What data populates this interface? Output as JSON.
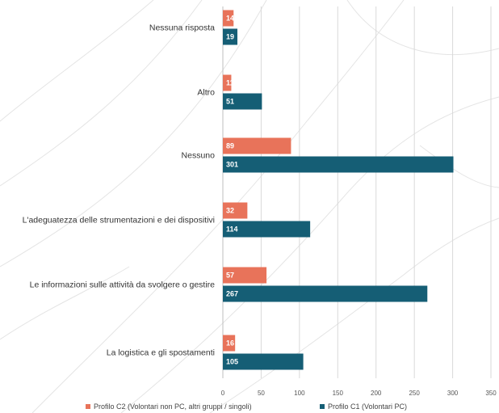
{
  "chart_data": {
    "type": "bar",
    "orientation": "horizontal",
    "categories": [
      "Nessuna risposta",
      "Altro",
      "Nessuno",
      "L'adeguatezza delle strumentazioni e dei dispositivi",
      "Le informazioni sulle attività da svolgere o gestire",
      "La logistica e gli spostamenti"
    ],
    "series": [
      {
        "name": "Profilo C2 (Volontari non PC, altri gruppi / singoli)",
        "color": "#e8735a",
        "values": [
          14,
          11,
          89,
          32,
          57,
          16
        ]
      },
      {
        "name": "Profilo C1 (Volontari PC)",
        "color": "#155e75",
        "values": [
          19,
          51,
          301,
          114,
          267,
          105
        ]
      }
    ],
    "xlim": [
      0,
      350
    ],
    "xticks": [
      0,
      50,
      100,
      150,
      200,
      250,
      300,
      350
    ],
    "grid": true,
    "legend": "bottom"
  }
}
